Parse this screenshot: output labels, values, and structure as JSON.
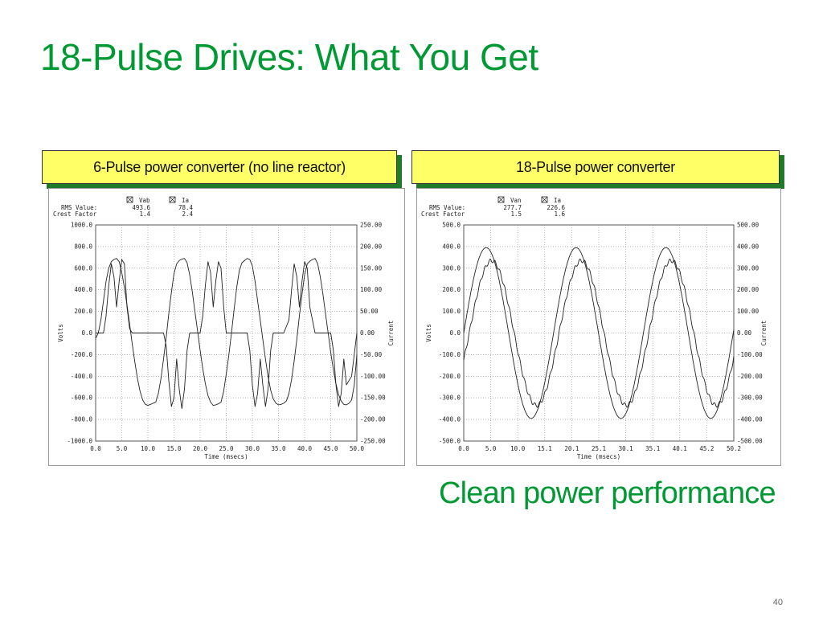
{
  "slide": {
    "title": "18-Pulse Drives: What You Get",
    "tagline": "Clean power performance",
    "page_number": "40",
    "colors": {
      "title": "#009933",
      "label_fill": "#ffff66",
      "label_shadow": "#1f7a2a",
      "trace": "#222222"
    }
  },
  "panels": [
    {
      "label": "6-Pulse power converter (no line reactor)"
    },
    {
      "label": "18-Pulse power converter"
    }
  ],
  "chart_data": [
    {
      "type": "line",
      "xlabel": "Time (msecs)",
      "ylabel": "Volts",
      "y2label": "Current",
      "stats_header": {
        "rms": "RMS Value:",
        "crest": "Crest Factor"
      },
      "x_ticks": [
        "0.0",
        "5.0",
        "10.0",
        "15.0",
        "20.0",
        "25.0",
        "30.0",
        "35.0",
        "40.0",
        "45.0",
        "50.0"
      ],
      "xlim": [
        0,
        50
      ],
      "y_ticks": [
        "1000.0",
        "800.0",
        "600.0",
        "400.0",
        "200.0",
        "0.0",
        "-200.0",
        "-400.0",
        "-600.0",
        "-800.0",
        "-1000.0"
      ],
      "ylim": [
        -1000,
        1000
      ],
      "y2_ticks": [
        "250.00",
        "200.00",
        "150.00",
        "100.00",
        "50.00",
        "0.00",
        "-50.00",
        "-100.00",
        "-150.00",
        "-200.00",
        "-250.00"
      ],
      "y2lim": [
        -250,
        250
      ],
      "grid": true,
      "series": [
        {
          "name": "Vab",
          "rms": "493.6",
          "crest": "1.4",
          "axis": "left",
          "x": [
            0,
            0.5,
            1,
            1.5,
            2,
            2.5,
            3,
            3.5,
            4,
            4.5,
            5,
            5.5,
            6,
            6.5,
            7,
            7.5,
            8,
            8.5,
            9,
            9.5,
            10,
            10.5,
            11,
            11.5,
            12,
            12.5,
            13,
            13.5,
            14,
            14.5,
            15,
            15.5,
            16,
            16.5,
            17,
            17.5,
            18,
            18.5,
            19,
            19.5,
            20,
            20.5,
            21,
            21.5,
            22,
            22.5,
            23,
            23.5,
            24,
            24.5,
            25,
            25.5,
            26,
            26.5,
            27,
            27.5,
            28,
            28.5,
            29,
            29.5,
            30,
            30.5,
            31,
            31.5,
            32,
            32.5,
            33,
            33.5,
            34,
            34.5,
            35,
            35.5,
            36,
            36.5,
            37,
            37.5,
            38,
            38.5,
            39,
            39.5,
            40,
            40.5,
            41,
            41.5,
            42,
            42.5,
            43,
            43.5,
            44,
            44.5,
            45,
            45.5,
            46,
            46.5,
            47,
            47.5,
            48,
            48.5,
            49,
            49.5,
            50
          ],
          "y": [
            -50,
            0,
            120,
            300,
            480,
            600,
            660,
            680,
            690,
            660,
            560,
            420,
            260,
            80,
            -100,
            -270,
            -420,
            -540,
            -620,
            -660,
            -670,
            -660,
            -650,
            -640,
            -560,
            -420,
            -240,
            -40,
            180,
            380,
            550,
            640,
            670,
            685,
            690,
            650,
            540,
            380,
            200,
            20,
            -160,
            -330,
            -470,
            -580,
            -640,
            -670,
            -665,
            -655,
            -640,
            -540,
            -380,
            -200,
            0,
            220,
            420,
            580,
            650,
            670,
            690,
            680,
            620,
            480,
            300,
            120,
            -60,
            -240,
            -400,
            -530,
            -610,
            -650,
            -665,
            -660,
            -650,
            -630,
            -560,
            -430,
            -260,
            -60,
            160,
            360,
            540,
            640,
            665,
            680,
            690,
            640,
            520,
            360,
            180,
            0,
            -180,
            -340,
            -470,
            -570,
            -630,
            -660,
            -665,
            -650,
            -620,
            -480,
            -200
          ]
        },
        {
          "name": "Ia",
          "rms": "78.4",
          "crest": "2.4",
          "axis": "right",
          "x": [
            0,
            1,
            1.5,
            2,
            2.5,
            3,
            3.5,
            4,
            4.5,
            5,
            5.5,
            6,
            6.5,
            7,
            7.5,
            8,
            8.5,
            9,
            10,
            11,
            12,
            13,
            13.5,
            14,
            14.5,
            15,
            15.5,
            16,
            16.5,
            17,
            17.5,
            18,
            19,
            20,
            20.5,
            21,
            21.5,
            22,
            22.5,
            23,
            23.5,
            24,
            24.5,
            25,
            26,
            27,
            28,
            29,
            29.5,
            30,
            30.5,
            31,
            31.5,
            32,
            32.5,
            33,
            33.5,
            34,
            34.5,
            35,
            36,
            37,
            37.5,
            38,
            38.5,
            39,
            39.5,
            40,
            40.5,
            41,
            42,
            43,
            44,
            45,
            45.5,
            46,
            46.5,
            47,
            47.5,
            48,
            49,
            50
          ],
          "y": [
            0,
            0,
            0,
            40,
            110,
            160,
            130,
            60,
            120,
            170,
            160,
            60,
            10,
            0,
            0,
            0,
            0,
            0,
            0,
            0,
            0,
            0,
            -30,
            -110,
            -170,
            -150,
            -60,
            -130,
            -175,
            -130,
            -40,
            0,
            0,
            0,
            40,
            110,
            165,
            140,
            60,
            120,
            165,
            150,
            60,
            0,
            0,
            0,
            0,
            0,
            -40,
            -120,
            -170,
            -140,
            -60,
            -120,
            -170,
            -130,
            -40,
            0,
            0,
            0,
            0,
            30,
            100,
            160,
            130,
            60,
            120,
            165,
            150,
            60,
            0,
            0,
            0,
            0,
            -40,
            -120,
            -170,
            -140,
            -60,
            -120,
            -100,
            0
          ]
        }
      ]
    },
    {
      "type": "line",
      "xlabel": "Time (msecs)",
      "ylabel": "Volts",
      "y2label": "Current",
      "stats_header": {
        "rms": "RMS Value:",
        "crest": "Crest Factor"
      },
      "x_ticks": [
        "0.0",
        "5.0",
        "10.0",
        "15.1",
        "20.1",
        "25.1",
        "30.1",
        "35.1",
        "40.1",
        "45.2",
        "50.2"
      ],
      "xlim": [
        0,
        50.2
      ],
      "y_ticks": [
        "500.0",
        "400.0",
        "300.0",
        "200.0",
        "100.0",
        "0.0",
        "-100.0",
        "-200.0",
        "-300.0",
        "-400.0",
        "-500.0"
      ],
      "ylim": [
        -500,
        500
      ],
      "y2_ticks": [
        "500.00",
        "400.00",
        "300.00",
        "200.00",
        "100.00",
        "0.00",
        "-100.00",
        "-200.00",
        "-300.00",
        "-400.00",
        "-500.00"
      ],
      "y2lim": [
        -500,
        500
      ],
      "grid": true,
      "series": [
        {
          "name": "Van",
          "rms": "277.7",
          "crest": "1.5",
          "axis": "left",
          "amplitude": 395,
          "period_ms": 16.7,
          "phase_deg": 0
        },
        {
          "name": "Ia",
          "rms": "226.6",
          "crest": "1.6",
          "axis": "right",
          "amplitude": 335,
          "period_ms": 16.7,
          "phase_deg": -22,
          "ripple": 12
        }
      ]
    }
  ]
}
